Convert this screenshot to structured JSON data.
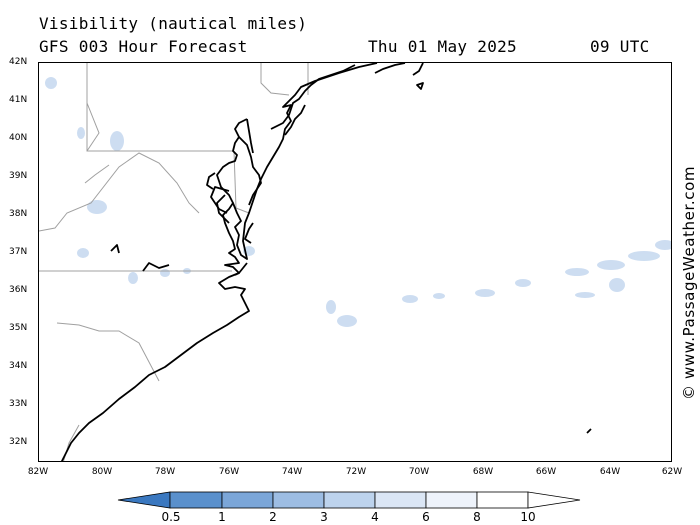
{
  "header": {
    "title": "Visibility (nautical miles)",
    "model": "GFS 003 Hour Forecast",
    "date": "Thu 01 May 2025",
    "time": "09 UTC"
  },
  "axes": {
    "lat_labels": [
      "42N",
      "41N",
      "40N",
      "39N",
      "38N",
      "37N",
      "36N",
      "35N",
      "34N",
      "33N",
      "32N"
    ],
    "lon_labels": [
      "82W",
      "80W",
      "78W",
      "76W",
      "74W",
      "72W",
      "70W",
      "68W",
      "66W",
      "64W",
      "62W"
    ],
    "lat_range": [
      31.5,
      42
    ],
    "lon_range": [
      -82,
      -62
    ]
  },
  "credit": "© www.PassageWeather.com",
  "colorbar": {
    "labels": [
      "0.5",
      "1",
      "2",
      "3",
      "4",
      "6",
      "8",
      "10"
    ],
    "colors": [
      "#3a78c0",
      "#5a90cc",
      "#7ba6d8",
      "#9dbde3",
      "#bdd3ed",
      "#dbe6f5",
      "#eef3fb",
      "#ffffff"
    ]
  },
  "colors": {
    "land_border": "#a0a0a0",
    "coast": "#000000",
    "low_vis": "#c5d8ef"
  }
}
